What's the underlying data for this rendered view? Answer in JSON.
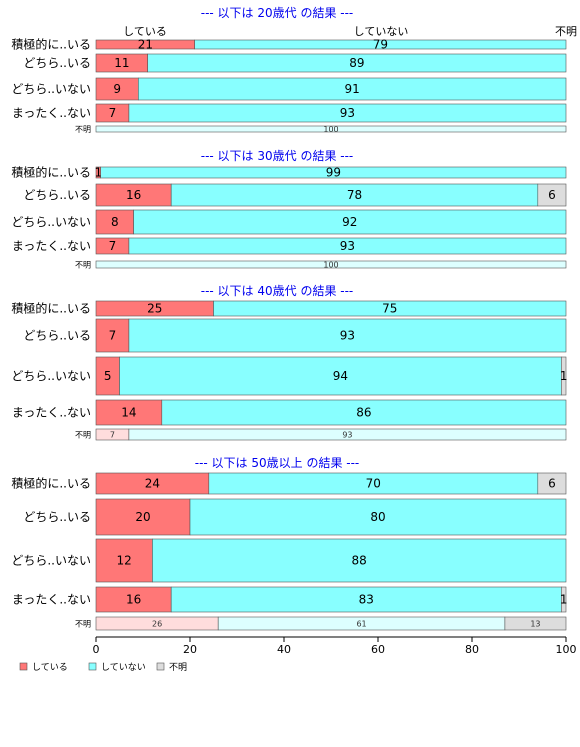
{
  "chart_data": {
    "type": "bar",
    "orientation": "horizontal",
    "stacked": true,
    "percent": true,
    "xlim": [
      0,
      100
    ],
    "xticks": [
      0,
      20,
      40,
      60,
      80,
      100
    ],
    "colors": {
      "している": "#ff7777",
      "していない": "#88ffff",
      "不明": "#dddddd"
    },
    "legend_position": "bottom-left",
    "column_headers": [
      "している",
      "していない",
      "不明"
    ],
    "legend": [
      "している",
      "していない",
      "不明"
    ],
    "panels": [
      {
        "title": "--- 以下は 20歳代 の結果 ---",
        "rows": [
          {
            "label": "積極的に..いる",
            "values": [
              21,
              79,
              0
            ],
            "small": false
          },
          {
            "label": "どちら..いる",
            "values": [
              11,
              89,
              0
            ],
            "small": false
          },
          {
            "label": "どちら..いない",
            "values": [
              9,
              91,
              0
            ],
            "small": false
          },
          {
            "label": "まったく..ない",
            "values": [
              7,
              93,
              0
            ],
            "small": false
          },
          {
            "label": "不明",
            "values": [
              0,
              100,
              0
            ],
            "small": true
          }
        ]
      },
      {
        "title": "--- 以下は 30歳代 の結果 ---",
        "rows": [
          {
            "label": "積極的に..いる",
            "values": [
              1,
              99,
              0
            ],
            "small": false
          },
          {
            "label": "どちら..いる",
            "values": [
              16,
              78,
              6
            ],
            "small": false
          },
          {
            "label": "どちら..いない",
            "values": [
              8,
              92,
              0
            ],
            "small": false
          },
          {
            "label": "まったく..ない",
            "values": [
              7,
              93,
              0
            ],
            "small": false
          },
          {
            "label": "不明",
            "values": [
              0,
              100,
              0
            ],
            "small": true
          }
        ]
      },
      {
        "title": "--- 以下は 40歳代 の結果 ---",
        "rows": [
          {
            "label": "積極的に..いる",
            "values": [
              25,
              75,
              0
            ],
            "small": false
          },
          {
            "label": "どちら..いる",
            "values": [
              7,
              93,
              0
            ],
            "small": false
          },
          {
            "label": "どちら..いない",
            "values": [
              5,
              94,
              1
            ],
            "small": false
          },
          {
            "label": "まったく..ない",
            "values": [
              14,
              86,
              0
            ],
            "small": false
          },
          {
            "label": "不明",
            "values": [
              7,
              93,
              0
            ],
            "small": true
          }
        ]
      },
      {
        "title": "--- 以下は 50歳以上 の結果 ---",
        "rows": [
          {
            "label": "積極的に..いる",
            "values": [
              24,
              70,
              6
            ],
            "small": false
          },
          {
            "label": "どちら..いる",
            "values": [
              20,
              80,
              0
            ],
            "small": false
          },
          {
            "label": "どちら..いない",
            "values": [
              12,
              88,
              0
            ],
            "small": false
          },
          {
            "label": "まったく..ない",
            "values": [
              16,
              83,
              1
            ],
            "small": false
          },
          {
            "label": "不明",
            "values": [
              26,
              61,
              13
            ],
            "small": true
          }
        ]
      }
    ]
  }
}
